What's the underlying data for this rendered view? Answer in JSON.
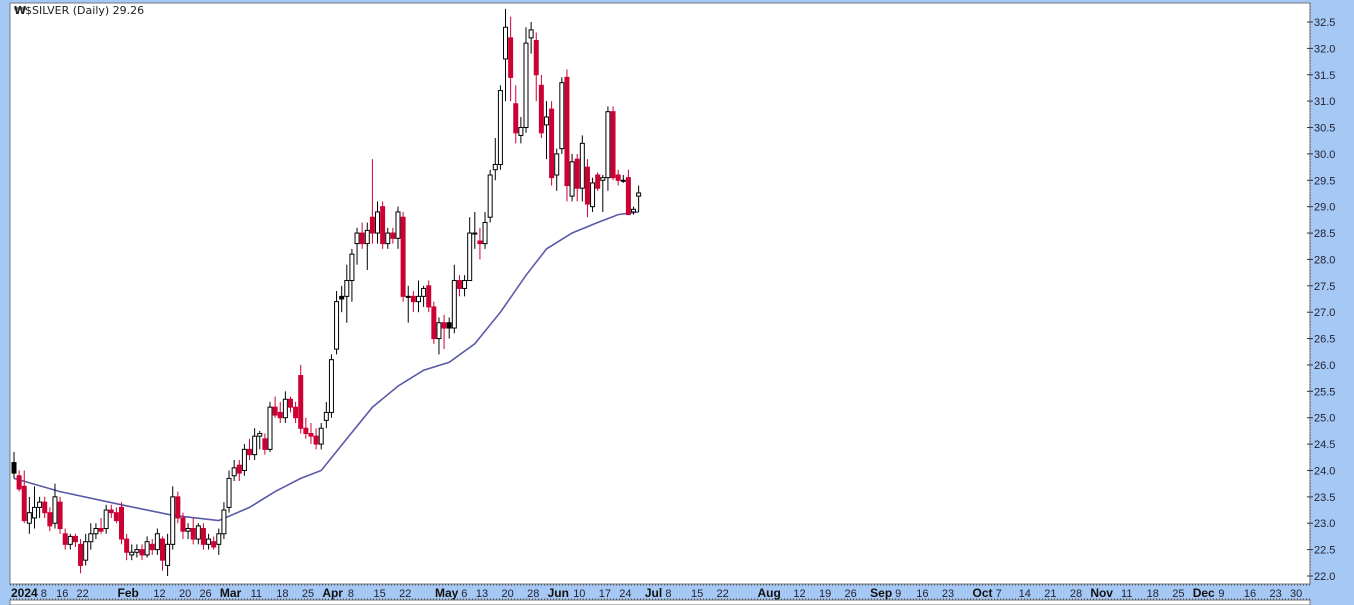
{
  "header": {
    "title": "$SILVER (Daily) 29.26",
    "logo_icon": "stockcharts-logo-icon"
  },
  "colors": {
    "up": "#000000",
    "down": "#cc0033",
    "ma": "#5a5aa8",
    "axis_bg": "#a6c8f4",
    "plot_bg": "#ffffff"
  },
  "chart_data": {
    "type": "candlestick",
    "title": "$SILVER (Daily) 29.26",
    "ylim": [
      22.0,
      32.5
    ],
    "y_ticks": [
      "22.0",
      "22.5",
      "23.0",
      "23.5",
      "24.0",
      "24.5",
      "25.0",
      "25.5",
      "26.0",
      "26.5",
      "27.0",
      "27.5",
      "28.0",
      "28.5",
      "29.0",
      "29.5",
      "30.0",
      "30.5",
      "31.0",
      "31.5",
      "32.0",
      "32.5"
    ],
    "x_ticks": [
      {
        "date": "2024-01-02",
        "label": "2024",
        "bold": true
      },
      {
        "date": "2024-01-08",
        "label": "8"
      },
      {
        "date": "2024-01-16",
        "label": "16"
      },
      {
        "date": "2024-01-22",
        "label": "22"
      },
      {
        "date": "2024-02-01",
        "label": "Feb",
        "bold": true
      },
      {
        "date": "2024-02-12",
        "label": "12"
      },
      {
        "date": "2024-02-20",
        "label": "20"
      },
      {
        "date": "2024-02-26",
        "label": "26"
      },
      {
        "date": "2024-03-01",
        "label": "Mar",
        "bold": true
      },
      {
        "date": "2024-03-11",
        "label": "11"
      },
      {
        "date": "2024-03-18",
        "label": "18"
      },
      {
        "date": "2024-03-25",
        "label": "25"
      },
      {
        "date": "2024-04-01",
        "label": "Apr",
        "bold": true
      },
      {
        "date": "2024-04-08",
        "label": "8"
      },
      {
        "date": "2024-04-15",
        "label": "15"
      },
      {
        "date": "2024-04-22",
        "label": "22"
      },
      {
        "date": "2024-05-01",
        "label": "May",
        "bold": true
      },
      {
        "date": "2024-05-06",
        "label": "6"
      },
      {
        "date": "2024-05-13",
        "label": "13"
      },
      {
        "date": "2024-05-20",
        "label": "20"
      },
      {
        "date": "2024-05-28",
        "label": "28"
      },
      {
        "date": "2024-06-03",
        "label": "Jun",
        "bold": true
      },
      {
        "date": "2024-06-10",
        "label": "10"
      },
      {
        "date": "2024-06-17",
        "label": "17"
      },
      {
        "date": "2024-06-24",
        "label": "24"
      },
      {
        "date": "2024-07-01",
        "label": "Jul",
        "bold": true
      },
      {
        "date": "2024-07-08",
        "label": "8"
      },
      {
        "date": "2024-07-15",
        "label": "15"
      },
      {
        "date": "2024-07-22",
        "label": "22"
      },
      {
        "date": "2024-08-01",
        "label": "Aug",
        "bold": true
      },
      {
        "date": "2024-08-12",
        "label": "12"
      },
      {
        "date": "2024-08-19",
        "label": "19"
      },
      {
        "date": "2024-08-26",
        "label": "26"
      },
      {
        "date": "2024-09-03",
        "label": "Sep",
        "bold": true
      },
      {
        "date": "2024-09-09",
        "label": "9"
      },
      {
        "date": "2024-09-16",
        "label": "16"
      },
      {
        "date": "2024-09-23",
        "label": "23"
      },
      {
        "date": "2024-10-01",
        "label": "Oct",
        "bold": true
      },
      {
        "date": "2024-10-07",
        "label": "7"
      },
      {
        "date": "2024-10-14",
        "label": "14"
      },
      {
        "date": "2024-10-21",
        "label": "21"
      },
      {
        "date": "2024-10-28",
        "label": "28"
      },
      {
        "date": "2024-11-01",
        "label": "Nov",
        "bold": true
      },
      {
        "date": "2024-11-11",
        "label": "11"
      },
      {
        "date": "2024-11-18",
        "label": "18"
      },
      {
        "date": "2024-11-25",
        "label": "25"
      },
      {
        "date": "2024-12-02",
        "label": "Dec",
        "bold": true
      },
      {
        "date": "2024-12-09",
        "label": "9"
      },
      {
        "date": "2024-12-16",
        "label": "16"
      },
      {
        "date": "2024-12-23",
        "label": "23"
      },
      {
        "date": "2024-12-30",
        "label": "30"
      }
    ],
    "ohlc_columns": [
      "date",
      "open",
      "high",
      "low",
      "close"
    ],
    "candles": [
      [
        "2024-01-02",
        24.15,
        24.35,
        23.85,
        23.95
      ],
      [
        "2024-01-03",
        23.9,
        24.0,
        23.6,
        23.65
      ],
      [
        "2024-01-04",
        23.7,
        24.0,
        23.0,
        23.05
      ],
      [
        "2024-01-05",
        23.0,
        23.5,
        22.8,
        23.2
      ],
      [
        "2024-01-08",
        23.1,
        23.7,
        22.9,
        23.3
      ],
      [
        "2024-01-09",
        23.3,
        23.5,
        23.1,
        23.4
      ],
      [
        "2024-01-10",
        23.4,
        23.5,
        23.1,
        23.2
      ],
      [
        "2024-01-11",
        23.2,
        23.3,
        22.85,
        22.95
      ],
      [
        "2024-01-12",
        23.0,
        23.75,
        22.9,
        23.5
      ],
      [
        "2024-01-16",
        23.4,
        23.5,
        22.8,
        22.9
      ],
      [
        "2024-01-17",
        22.8,
        22.9,
        22.5,
        22.6
      ],
      [
        "2024-01-18",
        22.6,
        22.8,
        22.5,
        22.75
      ],
      [
        "2024-01-19",
        22.75,
        22.8,
        22.55,
        22.65
      ],
      [
        "2024-01-22",
        22.6,
        22.7,
        22.05,
        22.2
      ],
      [
        "2024-01-23",
        22.3,
        22.8,
        22.2,
        22.65
      ],
      [
        "2024-01-24",
        22.65,
        23.0,
        22.5,
        22.8
      ],
      [
        "2024-01-25",
        22.8,
        23.0,
        22.7,
        22.9
      ],
      [
        "2024-01-26",
        22.9,
        23.1,
        22.8,
        22.85
      ],
      [
        "2024-01-29",
        22.9,
        23.35,
        22.8,
        23.25
      ],
      [
        "2024-01-30",
        23.25,
        23.35,
        23.1,
        23.2
      ],
      [
        "2024-01-31",
        23.2,
        23.3,
        23.0,
        23.05
      ],
      [
        "2024-02-01",
        23.3,
        23.4,
        22.6,
        22.7
      ],
      [
        "2024-02-02",
        22.7,
        22.8,
        22.3,
        22.45
      ],
      [
        "2024-02-05",
        22.4,
        22.6,
        22.3,
        22.45
      ],
      [
        "2024-02-06",
        22.45,
        22.6,
        22.35,
        22.5
      ],
      [
        "2024-02-07",
        22.5,
        22.6,
        22.3,
        22.4
      ],
      [
        "2024-02-08",
        22.4,
        22.75,
        22.35,
        22.65
      ],
      [
        "2024-02-09",
        22.6,
        22.7,
        22.4,
        22.5
      ],
      [
        "2024-02-12",
        22.5,
        22.9,
        22.4,
        22.8
      ],
      [
        "2024-02-13",
        22.7,
        22.75,
        22.1,
        22.3
      ],
      [
        "2024-02-14",
        22.2,
        22.8,
        22.0,
        22.6
      ],
      [
        "2024-02-15",
        22.6,
        23.7,
        22.5,
        23.5
      ],
      [
        "2024-02-16",
        23.5,
        23.6,
        23.0,
        23.1
      ],
      [
        "2024-02-20",
        23.1,
        23.2,
        22.7,
        22.85
      ],
      [
        "2024-02-21",
        22.85,
        23.0,
        22.7,
        22.9
      ],
      [
        "2024-02-22",
        22.9,
        23.1,
        22.6,
        22.7
      ],
      [
        "2024-02-23",
        22.7,
        23.0,
        22.6,
        22.95
      ],
      [
        "2024-02-26",
        22.9,
        23.0,
        22.5,
        22.6
      ],
      [
        "2024-02-27",
        22.6,
        22.8,
        22.5,
        22.7
      ],
      [
        "2024-02-28",
        22.65,
        22.75,
        22.5,
        22.55
      ],
      [
        "2024-02-29",
        22.6,
        22.9,
        22.4,
        22.8
      ],
      [
        "2024-03-01",
        22.8,
        23.4,
        22.7,
        23.25
      ],
      [
        "2024-03-04",
        23.3,
        24.0,
        23.2,
        23.85
      ],
      [
        "2024-03-05",
        23.9,
        24.2,
        23.8,
        24.05
      ],
      [
        "2024-03-06",
        24.1,
        24.2,
        23.8,
        23.95
      ],
      [
        "2024-03-07",
        24.0,
        24.5,
        23.9,
        24.4
      ],
      [
        "2024-03-08",
        24.4,
        24.6,
        24.2,
        24.3
      ],
      [
        "2024-03-11",
        24.3,
        24.8,
        24.2,
        24.65
      ],
      [
        "2024-03-12",
        24.65,
        24.75,
        24.4,
        24.7
      ],
      [
        "2024-03-13",
        24.6,
        24.7,
        24.3,
        24.4
      ],
      [
        "2024-03-14",
        24.4,
        25.3,
        24.35,
        25.2
      ],
      [
        "2024-03-15",
        25.2,
        25.4,
        25.0,
        25.05
      ],
      [
        "2024-03-18",
        25.1,
        25.3,
        24.9,
        25.0
      ],
      [
        "2024-03-19",
        25.0,
        25.5,
        24.9,
        25.35
      ],
      [
        "2024-03-20",
        25.35,
        25.4,
        25.1,
        25.2
      ],
      [
        "2024-03-21",
        25.2,
        25.3,
        24.9,
        25.0
      ],
      [
        "2024-03-22",
        25.8,
        26.0,
        24.7,
        24.8
      ],
      [
        "2024-03-25",
        24.8,
        25.0,
        24.6,
        24.7
      ],
      [
        "2024-03-26",
        24.7,
        24.9,
        24.5,
        24.65
      ],
      [
        "2024-03-27",
        24.65,
        24.8,
        24.4,
        24.5
      ],
      [
        "2024-03-28",
        24.5,
        24.9,
        24.4,
        24.8
      ],
      [
        "2024-04-01",
        24.95,
        25.3,
        24.8,
        25.1
      ],
      [
        "2024-04-02",
        25.1,
        26.2,
        25.0,
        26.1
      ],
      [
        "2024-04-03",
        26.3,
        27.4,
        26.2,
        27.2
      ],
      [
        "2024-04-04",
        27.3,
        27.5,
        27.0,
        27.25
      ],
      [
        "2024-04-05",
        27.3,
        27.9,
        26.8,
        27.6
      ],
      [
        "2024-04-08",
        27.6,
        28.2,
        27.2,
        28.1
      ],
      [
        "2024-04-09",
        28.3,
        28.6,
        27.9,
        28.5
      ],
      [
        "2024-04-10",
        28.5,
        28.7,
        28.2,
        28.3
      ],
      [
        "2024-04-11",
        28.3,
        28.7,
        27.8,
        28.55
      ],
      [
        "2024-04-12",
        28.8,
        29.9,
        28.3,
        28.5
      ],
      [
        "2024-04-15",
        28.5,
        29.1,
        28.3,
        28.9
      ],
      [
        "2024-04-16",
        29.0,
        29.1,
        28.2,
        28.3
      ],
      [
        "2024-04-17",
        28.3,
        28.6,
        28.2,
        28.5
      ],
      [
        "2024-04-18",
        28.5,
        28.6,
        28.3,
        28.4
      ],
      [
        "2024-04-19",
        28.4,
        29.0,
        28.2,
        28.9
      ],
      [
        "2024-04-22",
        28.8,
        28.9,
        27.2,
        27.3
      ],
      [
        "2024-04-23",
        27.3,
        27.5,
        26.8,
        27.3
      ],
      [
        "2024-04-24",
        27.3,
        27.4,
        27.0,
        27.2
      ],
      [
        "2024-04-25",
        27.2,
        27.6,
        27.0,
        27.3
      ],
      [
        "2024-04-26",
        27.3,
        27.5,
        27.1,
        27.45
      ],
      [
        "2024-04-29",
        27.5,
        27.6,
        27.0,
        27.1
      ],
      [
        "2024-04-30",
        27.1,
        27.2,
        26.4,
        26.5
      ],
      [
        "2024-05-01",
        26.5,
        26.9,
        26.2,
        26.8
      ],
      [
        "2024-05-02",
        26.8,
        26.95,
        26.3,
        26.7
      ],
      [
        "2024-05-03",
        26.8,
        26.9,
        26.5,
        26.7
      ],
      [
        "2024-05-06",
        26.7,
        27.9,
        26.6,
        27.6
      ],
      [
        "2024-05-07",
        27.6,
        27.7,
        27.3,
        27.45
      ],
      [
        "2024-05-08",
        27.45,
        27.7,
        27.3,
        27.6
      ],
      [
        "2024-05-09",
        27.6,
        28.8,
        27.6,
        28.5
      ],
      [
        "2024-05-10",
        28.5,
        28.9,
        28.2,
        28.5
      ],
      [
        "2024-05-13",
        28.35,
        28.6,
        28.0,
        28.3
      ],
      [
        "2024-05-14",
        28.3,
        28.9,
        28.2,
        28.7
      ],
      [
        "2024-05-15",
        28.8,
        29.7,
        28.7,
        29.6
      ],
      [
        "2024-05-16",
        29.7,
        30.3,
        29.5,
        29.8
      ],
      [
        "2024-05-17",
        29.8,
        31.3,
        29.7,
        31.2
      ],
      [
        "2024-05-20",
        31.8,
        32.75,
        31.0,
        32.4
      ],
      [
        "2024-05-21",
        32.2,
        32.6,
        31.0,
        31.45
      ],
      [
        "2024-05-22",
        30.95,
        31.3,
        30.2,
        30.4
      ],
      [
        "2024-05-23",
        30.35,
        30.7,
        30.2,
        30.5
      ],
      [
        "2024-05-24",
        30.5,
        32.4,
        30.4,
        32.1
      ],
      [
        "2024-05-28",
        32.2,
        32.5,
        31.9,
        32.35
      ],
      [
        "2024-05-29",
        32.15,
        32.3,
        31.0,
        31.5
      ],
      [
        "2024-05-30",
        31.3,
        31.5,
        30.3,
        30.4
      ],
      [
        "2024-05-31",
        30.55,
        31.0,
        29.9,
        30.7
      ],
      [
        "2024-06-03",
        30.85,
        31.0,
        29.4,
        29.55
      ],
      [
        "2024-06-04",
        29.6,
        30.1,
        29.3,
        30.0
      ],
      [
        "2024-06-05",
        30.1,
        31.45,
        30.0,
        31.35
      ],
      [
        "2024-06-06",
        31.45,
        31.6,
        29.1,
        29.4
      ],
      [
        "2024-06-07",
        29.2,
        30.0,
        29.1,
        29.85
      ],
      [
        "2024-06-10",
        29.9,
        30.0,
        29.1,
        29.35
      ],
      [
        "2024-06-11",
        29.35,
        30.35,
        29.1,
        30.2
      ],
      [
        "2024-06-12",
        29.75,
        29.9,
        28.8,
        29.05
      ],
      [
        "2024-06-13",
        29.0,
        29.55,
        28.9,
        29.45
      ],
      [
        "2024-06-14",
        29.6,
        29.65,
        29.3,
        29.35
      ],
      [
        "2024-06-17",
        29.5,
        29.6,
        28.9,
        29.55
      ],
      [
        "2024-06-18",
        29.55,
        30.9,
        29.3,
        30.8
      ],
      [
        "2024-06-20",
        30.8,
        30.9,
        29.5,
        29.55
      ],
      [
        "2024-06-21",
        29.6,
        29.7,
        29.4,
        29.5
      ],
      [
        "2024-06-24",
        29.5,
        29.6,
        29.45,
        29.5
      ],
      [
        "2024-06-25",
        29.55,
        29.7,
        28.85,
        28.85
      ],
      [
        "2024-06-26",
        28.9,
        29.0,
        28.85,
        28.95
      ],
      [
        "2024-06-27",
        29.2,
        29.4,
        28.9,
        29.26
      ]
    ],
    "moving_average": [
      [
        "2024-01-02",
        23.85
      ],
      [
        "2024-01-16",
        23.6
      ],
      [
        "2024-02-01",
        23.35
      ],
      [
        "2024-02-15",
        23.15
      ],
      [
        "2024-02-29",
        23.05
      ],
      [
        "2024-03-08",
        23.3
      ],
      [
        "2024-03-15",
        23.6
      ],
      [
        "2024-03-22",
        23.85
      ],
      [
        "2024-03-28",
        24.0
      ],
      [
        "2024-04-05",
        24.6
      ],
      [
        "2024-04-12",
        25.2
      ],
      [
        "2024-04-19",
        25.6
      ],
      [
        "2024-04-26",
        25.9
      ],
      [
        "2024-05-03",
        26.05
      ],
      [
        "2024-05-10",
        26.4
      ],
      [
        "2024-05-17",
        27.0
      ],
      [
        "2024-05-24",
        27.7
      ],
      [
        "2024-05-31",
        28.2
      ],
      [
        "2024-06-07",
        28.5
      ],
      [
        "2024-06-14",
        28.7
      ],
      [
        "2024-06-21",
        28.85
      ],
      [
        "2024-06-27",
        28.9
      ]
    ]
  }
}
